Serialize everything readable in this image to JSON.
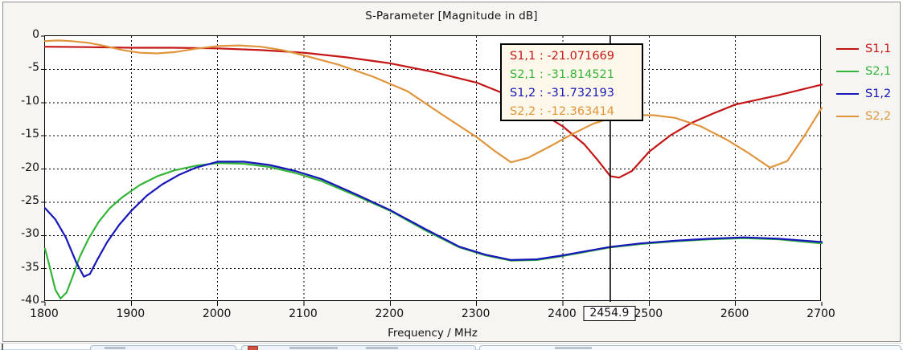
{
  "chart_data": {
    "type": "line",
    "title": "S-Parameter [Magnitude in dB]",
    "xlabel": "Frequency / MHz",
    "ylabel": "",
    "xlim": [
      1800,
      2700
    ],
    "ylim": [
      -40,
      0
    ],
    "xticks": [
      1800,
      1900,
      2000,
      2100,
      2200,
      2300,
      2400,
      2500,
      2600,
      2700
    ],
    "yticks": [
      0,
      -5,
      -10,
      -15,
      -20,
      -25,
      -30,
      -35,
      -40
    ],
    "grid": true,
    "legend_position": "right",
    "series": [
      {
        "name": "S1,1",
        "color": "#c41616",
        "x": [
          1800,
          1850,
          1900,
          1950,
          2000,
          2050,
          2100,
          2150,
          2200,
          2250,
          2300,
          2350,
          2400,
          2425,
          2440,
          2455,
          2465,
          2480,
          2500,
          2525,
          2550,
          2575,
          2600,
          2650,
          2700
        ],
        "y": [
          -1.6,
          -1.65,
          -1.75,
          -1.75,
          -1.85,
          -2.1,
          -2.5,
          -3.2,
          -4.1,
          -5.4,
          -7.0,
          -9.6,
          -13.6,
          -16.3,
          -18.6,
          -21.07,
          -21.3,
          -20.3,
          -17.4,
          -14.9,
          -13.0,
          -11.6,
          -10.3,
          -8.9,
          -7.3
        ]
      },
      {
        "name": "S2,1",
        "color": "#35b43a",
        "x": [
          1800,
          1806,
          1812,
          1818,
          1825,
          1832,
          1840,
          1850,
          1862,
          1875,
          1890,
          1910,
          1930,
          1950,
          1975,
          2000,
          2030,
          2060,
          2090,
          2120,
          2160,
          2200,
          2240,
          2280,
          2310,
          2340,
          2370,
          2400,
          2430,
          2455,
          2490,
          2530,
          2570,
          2610,
          2650,
          2700
        ],
        "y": [
          -32.0,
          -35.0,
          -38.2,
          -39.5,
          -38.6,
          -36.2,
          -33.3,
          -30.6,
          -28.0,
          -25.9,
          -24.2,
          -22.4,
          -21.1,
          -20.2,
          -19.5,
          -19.1,
          -19.2,
          -19.7,
          -20.6,
          -21.8,
          -24.0,
          -26.3,
          -29.2,
          -31.8,
          -33.0,
          -33.8,
          -33.7,
          -33.1,
          -32.4,
          -31.81,
          -31.3,
          -30.9,
          -30.6,
          -30.4,
          -30.6,
          -31.2
        ]
      },
      {
        "name": "S1,2",
        "color": "#1616bb",
        "x": [
          1800,
          1812,
          1824,
          1836,
          1845,
          1852,
          1860,
          1872,
          1886,
          1900,
          1918,
          1936,
          1955,
          1975,
          2000,
          2030,
          2060,
          2090,
          2120,
          2160,
          2200,
          2240,
          2280,
          2310,
          2340,
          2370,
          2400,
          2430,
          2455,
          2490,
          2530,
          2570,
          2610,
          2650,
          2700
        ],
        "y": [
          -25.9,
          -27.6,
          -30.3,
          -34.0,
          -36.2,
          -35.8,
          -33.8,
          -31.0,
          -28.4,
          -26.3,
          -24.0,
          -22.3,
          -20.9,
          -19.8,
          -18.9,
          -18.9,
          -19.4,
          -20.3,
          -21.5,
          -23.8,
          -26.2,
          -29.0,
          -31.7,
          -32.9,
          -33.7,
          -33.6,
          -33.0,
          -32.3,
          -31.73,
          -31.2,
          -30.8,
          -30.5,
          -30.3,
          -30.5,
          -31.0
        ]
      },
      {
        "name": "S2,2",
        "color": "#e0953d",
        "x": [
          1800,
          1815,
          1830,
          1850,
          1870,
          1890,
          1910,
          1930,
          1950,
          1975,
          2000,
          2025,
          2050,
          2075,
          2100,
          2140,
          2180,
          2220,
          2260,
          2300,
          2320,
          2340,
          2360,
          2385,
          2410,
          2435,
          2455,
          2480,
          2505,
          2530,
          2560,
          2590,
          2615,
          2640,
          2660,
          2680,
          2700
        ],
        "y": [
          -0.75,
          -0.65,
          -0.75,
          -1.0,
          -1.5,
          -2.1,
          -2.5,
          -2.6,
          -2.4,
          -1.9,
          -1.5,
          -1.4,
          -1.6,
          -2.1,
          -2.9,
          -4.3,
          -6.1,
          -8.3,
          -11.8,
          -15.2,
          -17.2,
          -19.0,
          -18.3,
          -16.6,
          -14.8,
          -13.2,
          -12.36,
          -11.9,
          -11.9,
          -12.3,
          -13.6,
          -15.6,
          -17.6,
          -19.8,
          -18.8,
          -15.0,
          -10.8
        ]
      }
    ],
    "marker": {
      "x": 2454.9,
      "x_label": "2454.9",
      "readouts": [
        {
          "label": "S1,1",
          "value": "-21.071669",
          "color": "#c41616"
        },
        {
          "label": "S2,1",
          "value": "-31.814521",
          "color": "#35b43a"
        },
        {
          "label": "S1,2",
          "value": "-31.732193",
          "color": "#1616bb"
        },
        {
          "label": "S2,2",
          "value": "-12.363414",
          "color": "#e0953d"
        }
      ]
    }
  }
}
